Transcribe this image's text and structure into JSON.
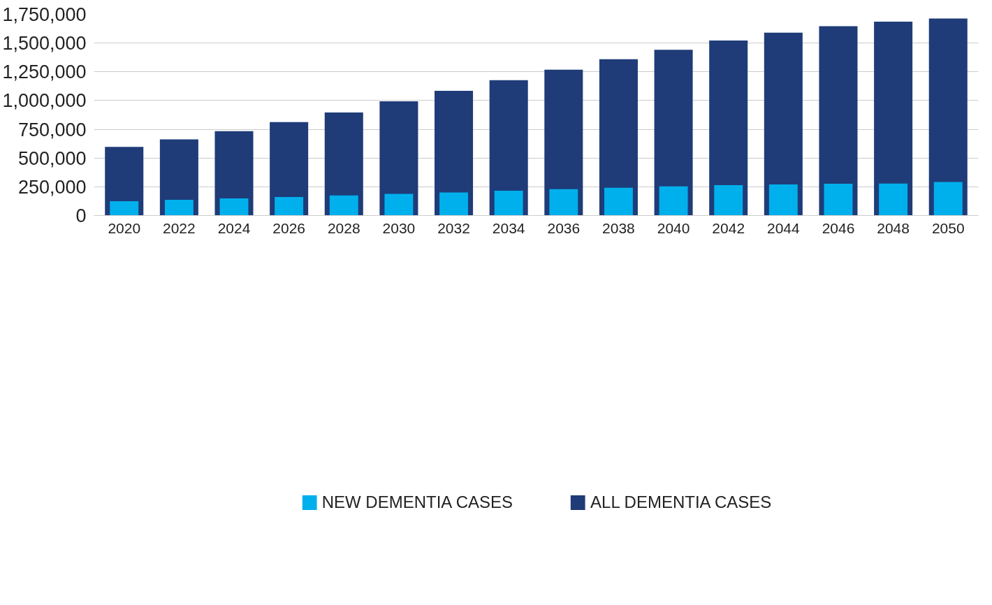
{
  "chart_data": {
    "type": "bar",
    "categories": [
      "2020",
      "2022",
      "2024",
      "2026",
      "2028",
      "2030",
      "2032",
      "2034",
      "2036",
      "2038",
      "2040",
      "2042",
      "2044",
      "2046",
      "2048",
      "2050"
    ],
    "series": [
      {
        "name": "ALL DEMENTIA CASES",
        "color": "#1f3c78",
        "values": [
          597000,
          662000,
          734000,
          813000,
          897000,
          993000,
          1084000,
          1177000,
          1268000,
          1359000,
          1441000,
          1522000,
          1590000,
          1647000,
          1686000,
          1714000
        ]
      },
      {
        "name": "NEW DEMENTIA CASES",
        "color": "#00b0ec",
        "values": [
          125000,
          137000,
          149000,
          161000,
          175000,
          189000,
          201000,
          216000,
          230000,
          242000,
          254000,
          264000,
          271000,
          276000,
          278000,
          292000
        ]
      }
    ],
    "ylim": [
      0,
      1750000
    ],
    "yticks": [
      {
        "value": 0,
        "label": "0"
      },
      {
        "value": 250000,
        "label": "250,000"
      },
      {
        "value": 500000,
        "label": "500,000"
      },
      {
        "value": 750000,
        "label": "750,000"
      },
      {
        "value": 1000000,
        "label": "1,000,000"
      },
      {
        "value": 1250000,
        "label": "1,250,000"
      },
      {
        "value": 1500000,
        "label": "1,500,000"
      },
      {
        "value": 1750000,
        "label": "1,750,000"
      }
    ],
    "grid": "y",
    "legend": "bottom"
  }
}
